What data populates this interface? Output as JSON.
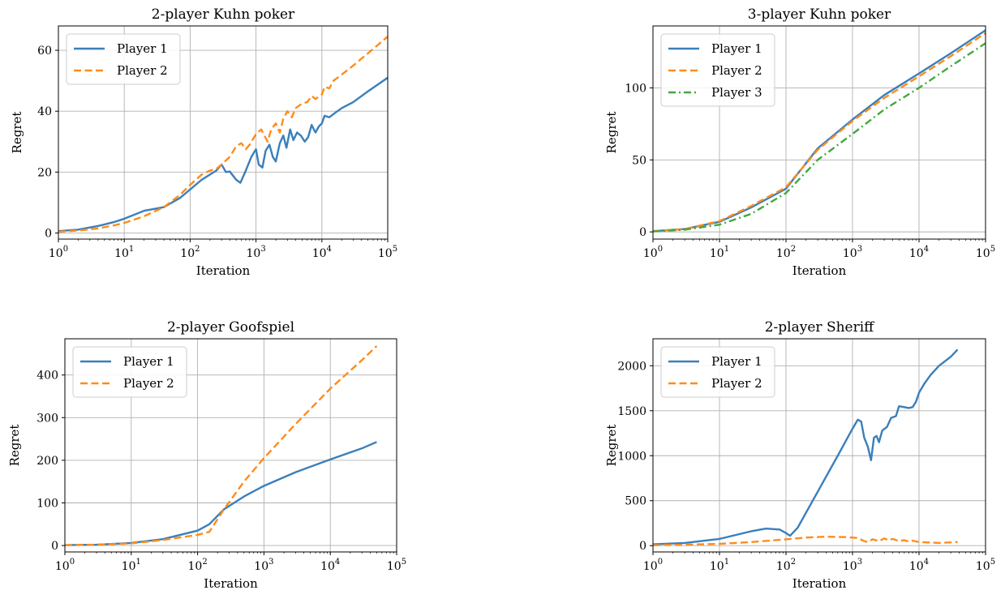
{
  "chart_data": [
    {
      "type": "line",
      "title": "2-player Kuhn poker",
      "xlabel": "Iteration",
      "ylabel": "Regret",
      "xscale": "log",
      "xlim": [
        1,
        100000
      ],
      "ylim": [
        -2,
        68
      ],
      "xticks": [
        {
          "v": 1,
          "e": "0"
        },
        {
          "v": 10,
          "e": "1"
        },
        {
          "v": 100,
          "e": "2"
        },
        {
          "v": 1000,
          "e": "3"
        },
        {
          "v": 10000,
          "e": "4"
        },
        {
          "v": 100000,
          "e": "5"
        }
      ],
      "yticks": [
        0,
        20,
        40,
        60
      ],
      "grid": true,
      "legend": "top-left",
      "series": [
        {
          "name": "Player 1",
          "color": "#3a7fbb",
          "dash": "solid",
          "points": [
            [
              1,
              0.6
            ],
            [
              2,
              1.1
            ],
            [
              4,
              2.3
            ],
            [
              7,
              3.6
            ],
            [
              10,
              4.7
            ],
            [
              20,
              7.3
            ],
            [
              40,
              8.5
            ],
            [
              70,
              11.5
            ],
            [
              100,
              14.3
            ],
            [
              150,
              17.5
            ],
            [
              200,
              19.2
            ],
            [
              250,
              20.5
            ],
            [
              300,
              22.5
            ],
            [
              350,
              20
            ],
            [
              400,
              20.2
            ],
            [
              500,
              17.5
            ],
            [
              580,
              16.5
            ],
            [
              700,
              20.5
            ],
            [
              850,
              25
            ],
            [
              1000,
              27.5
            ],
            [
              1100,
              22.5
            ],
            [
              1250,
              21.5
            ],
            [
              1400,
              27
            ],
            [
              1600,
              29
            ],
            [
              1800,
              25
            ],
            [
              2000,
              23.5
            ],
            [
              2300,
              29.5
            ],
            [
              2600,
              32
            ],
            [
              2900,
              28
            ],
            [
              3300,
              34
            ],
            [
              3700,
              30.5
            ],
            [
              4200,
              33
            ],
            [
              4800,
              32
            ],
            [
              5500,
              30
            ],
            [
              6200,
              31.5
            ],
            [
              7000,
              35.5
            ],
            [
              8000,
              33
            ],
            [
              9000,
              35
            ],
            [
              10000,
              36
            ],
            [
              11000,
              38.5
            ],
            [
              13000,
              38
            ],
            [
              16000,
              39.5
            ],
            [
              20000,
              41
            ],
            [
              30000,
              43
            ],
            [
              50000,
              46.5
            ],
            [
              100000,
              51
            ]
          ]
        },
        {
          "name": "Player 2",
          "color": "#ff8c1a",
          "dash": "dashed",
          "points": [
            [
              1,
              0.4
            ],
            [
              2,
              0.8
            ],
            [
              4,
              1.5
            ],
            [
              7,
              2.5
            ],
            [
              10,
              3.3
            ],
            [
              20,
              5.5
            ],
            [
              40,
              8.5
            ],
            [
              70,
              12.5
            ],
            [
              100,
              15.8
            ],
            [
              150,
              19.2
            ],
            [
              200,
              20.5
            ],
            [
              250,
              21
            ],
            [
              300,
              22.5
            ],
            [
              400,
              25
            ],
            [
              500,
              28.5
            ],
            [
              600,
              29.5
            ],
            [
              700,
              27.5
            ],
            [
              800,
              29
            ],
            [
              1000,
              32.5
            ],
            [
              1200,
              34
            ],
            [
              1500,
              30
            ],
            [
              1700,
              34
            ],
            [
              2000,
              36
            ],
            [
              2300,
              33
            ],
            [
              2600,
              37.5
            ],
            [
              3000,
              40
            ],
            [
              3500,
              38
            ],
            [
              4000,
              41
            ],
            [
              5000,
              42.5
            ],
            [
              6000,
              43
            ],
            [
              7000,
              45
            ],
            [
              8000,
              44
            ],
            [
              10000,
              45.5
            ],
            [
              11000,
              48
            ],
            [
              13000,
              47.5
            ],
            [
              15000,
              50
            ],
            [
              20000,
              52
            ],
            [
              30000,
              55
            ],
            [
              50000,
              59
            ],
            [
              100000,
              64.5
            ]
          ]
        }
      ]
    },
    {
      "type": "line",
      "title": "3-player Kuhn poker",
      "xlabel": "Iteration",
      "ylabel": "Regret",
      "xscale": "log",
      "xlim": [
        1,
        100000
      ],
      "ylim": [
        -5,
        143
      ],
      "xticks": [
        {
          "v": 1,
          "e": "0"
        },
        {
          "v": 10,
          "e": "1"
        },
        {
          "v": 100,
          "e": "2"
        },
        {
          "v": 1000,
          "e": "3"
        },
        {
          "v": 10000,
          "e": "4"
        },
        {
          "v": 100000,
          "e": "5"
        }
      ],
      "yticks": [
        0,
        50,
        100
      ],
      "grid": true,
      "legend": "top-left",
      "series": [
        {
          "name": "Player 1",
          "color": "#3a7fbb",
          "dash": "solid",
          "points": [
            [
              1,
              0.5
            ],
            [
              3,
              2
            ],
            [
              10,
              7
            ],
            [
              30,
              17
            ],
            [
              100,
              30
            ],
            [
              300,
              58
            ],
            [
              1000,
              78
            ],
            [
              3000,
              95
            ],
            [
              10000,
              110
            ],
            [
              30000,
              124
            ],
            [
              100000,
              140
            ]
          ]
        },
        {
          "name": "Player 2",
          "color": "#ff8c1a",
          "dash": "dashed",
          "points": [
            [
              1,
              0.5
            ],
            [
              3,
              2
            ],
            [
              10,
              7.5
            ],
            [
              30,
              18
            ],
            [
              100,
              31
            ],
            [
              300,
              57
            ],
            [
              1000,
              77
            ],
            [
              3000,
              93
            ],
            [
              10000,
              108
            ],
            [
              30000,
              122
            ],
            [
              100000,
              138
            ]
          ]
        },
        {
          "name": "Player 3",
          "color": "#44a840",
          "dash": "dashdot",
          "points": [
            [
              1,
              0.3
            ],
            [
              3,
              1.5
            ],
            [
              10,
              5
            ],
            [
              30,
              12.5
            ],
            [
              100,
              27
            ],
            [
              300,
              50
            ],
            [
              1000,
              68
            ],
            [
              3000,
              85
            ],
            [
              10000,
              100
            ],
            [
              30000,
              115
            ],
            [
              100000,
              131
            ]
          ]
        }
      ]
    },
    {
      "type": "line",
      "title": "2-player Goofspiel",
      "xlabel": "Iteration",
      "ylabel": "Regret",
      "xscale": "log",
      "xlim": [
        1,
        100000
      ],
      "ylim": [
        -15,
        485
      ],
      "xticks": [
        {
          "v": 1,
          "e": "0"
        },
        {
          "v": 10,
          "e": "1"
        },
        {
          "v": 100,
          "e": "2"
        },
        {
          "v": 1000,
          "e": "3"
        },
        {
          "v": 10000,
          "e": "4"
        },
        {
          "v": 100000,
          "e": "5"
        }
      ],
      "yticks": [
        0,
        100,
        200,
        300,
        400
      ],
      "grid": true,
      "legend": "top-left",
      "series": [
        {
          "name": "Player 1",
          "color": "#3a7fbb",
          "dash": "solid",
          "points": [
            [
              1,
              1
            ],
            [
              3,
              2
            ],
            [
              10,
              6
            ],
            [
              30,
              15
            ],
            [
              100,
              35
            ],
            [
              150,
              50
            ],
            [
              250,
              85
            ],
            [
              500,
              115
            ],
            [
              1000,
              140
            ],
            [
              3000,
              172
            ],
            [
              10000,
              202
            ],
            [
              30000,
              228
            ],
            [
              50000,
              243
            ]
          ]
        },
        {
          "name": "Player 2",
          "color": "#ff8c1a",
          "dash": "dashed",
          "points": [
            [
              1,
              1
            ],
            [
              3,
              2
            ],
            [
              10,
              5
            ],
            [
              30,
              13
            ],
            [
              100,
              25
            ],
            [
              150,
              32
            ],
            [
              250,
              85
            ],
            [
              500,
              150
            ],
            [
              1000,
              205
            ],
            [
              3000,
              285
            ],
            [
              10000,
              368
            ],
            [
              30000,
              435
            ],
            [
              50000,
              468
            ]
          ]
        }
      ]
    },
    {
      "type": "line",
      "title": "2-player Sheriff",
      "xlabel": "Iteration",
      "ylabel": "Regret",
      "xscale": "log",
      "xlim": [
        1,
        100000
      ],
      "ylim": [
        -70,
        2300
      ],
      "xticks": [
        {
          "v": 1,
          "e": "0"
        },
        {
          "v": 10,
          "e": "1"
        },
        {
          "v": 100,
          "e": "2"
        },
        {
          "v": 1000,
          "e": "3"
        },
        {
          "v": 10000,
          "e": "4"
        },
        {
          "v": 100000,
          "e": "5"
        }
      ],
      "yticks": [
        0,
        500,
        1000,
        1500,
        2000
      ],
      "grid": true,
      "legend": "top-left",
      "series": [
        {
          "name": "Player 1",
          "color": "#3a7fbb",
          "dash": "solid",
          "points": [
            [
              1,
              15
            ],
            [
              3,
              30
            ],
            [
              10,
              75
            ],
            [
              30,
              160
            ],
            [
              50,
              190
            ],
            [
              80,
              180
            ],
            [
              100,
              140
            ],
            [
              115,
              110
            ],
            [
              150,
              200
            ],
            [
              300,
              600
            ],
            [
              600,
              1000
            ],
            [
              1000,
              1300
            ],
            [
              1200,
              1400
            ],
            [
              1350,
              1380
            ],
            [
              1500,
              1200
            ],
            [
              1700,
              1100
            ],
            [
              1900,
              950
            ],
            [
              2100,
              1200
            ],
            [
              2300,
              1220
            ],
            [
              2500,
              1150
            ],
            [
              2800,
              1280
            ],
            [
              3300,
              1320
            ],
            [
              3800,
              1420
            ],
            [
              4500,
              1440
            ],
            [
              5000,
              1550
            ],
            [
              6000,
              1540
            ],
            [
              7000,
              1530
            ],
            [
              8000,
              1540
            ],
            [
              9000,
              1600
            ],
            [
              10000,
              1700
            ],
            [
              12000,
              1800
            ],
            [
              15000,
              1900
            ],
            [
              20000,
              2000
            ],
            [
              30000,
              2100
            ],
            [
              38000,
              2180
            ]
          ]
        },
        {
          "name": "Player 2",
          "color": "#ff8c1a",
          "dash": "dashed",
          "points": [
            [
              1,
              5
            ],
            [
              3,
              10
            ],
            [
              10,
              20
            ],
            [
              30,
              40
            ],
            [
              100,
              70
            ],
            [
              200,
              90
            ],
            [
              400,
              100
            ],
            [
              800,
              95
            ],
            [
              1200,
              85
            ],
            [
              1500,
              50
            ],
            [
              1700,
              40
            ],
            [
              2000,
              70
            ],
            [
              2500,
              50
            ],
            [
              3000,
              80
            ],
            [
              3500,
              60
            ],
            [
              4000,
              75
            ],
            [
              5000,
              50
            ],
            [
              6000,
              60
            ],
            [
              7000,
              45
            ],
            [
              8000,
              55
            ],
            [
              10000,
              40
            ],
            [
              20000,
              30
            ],
            [
              38000,
              40
            ]
          ]
        }
      ]
    }
  ]
}
